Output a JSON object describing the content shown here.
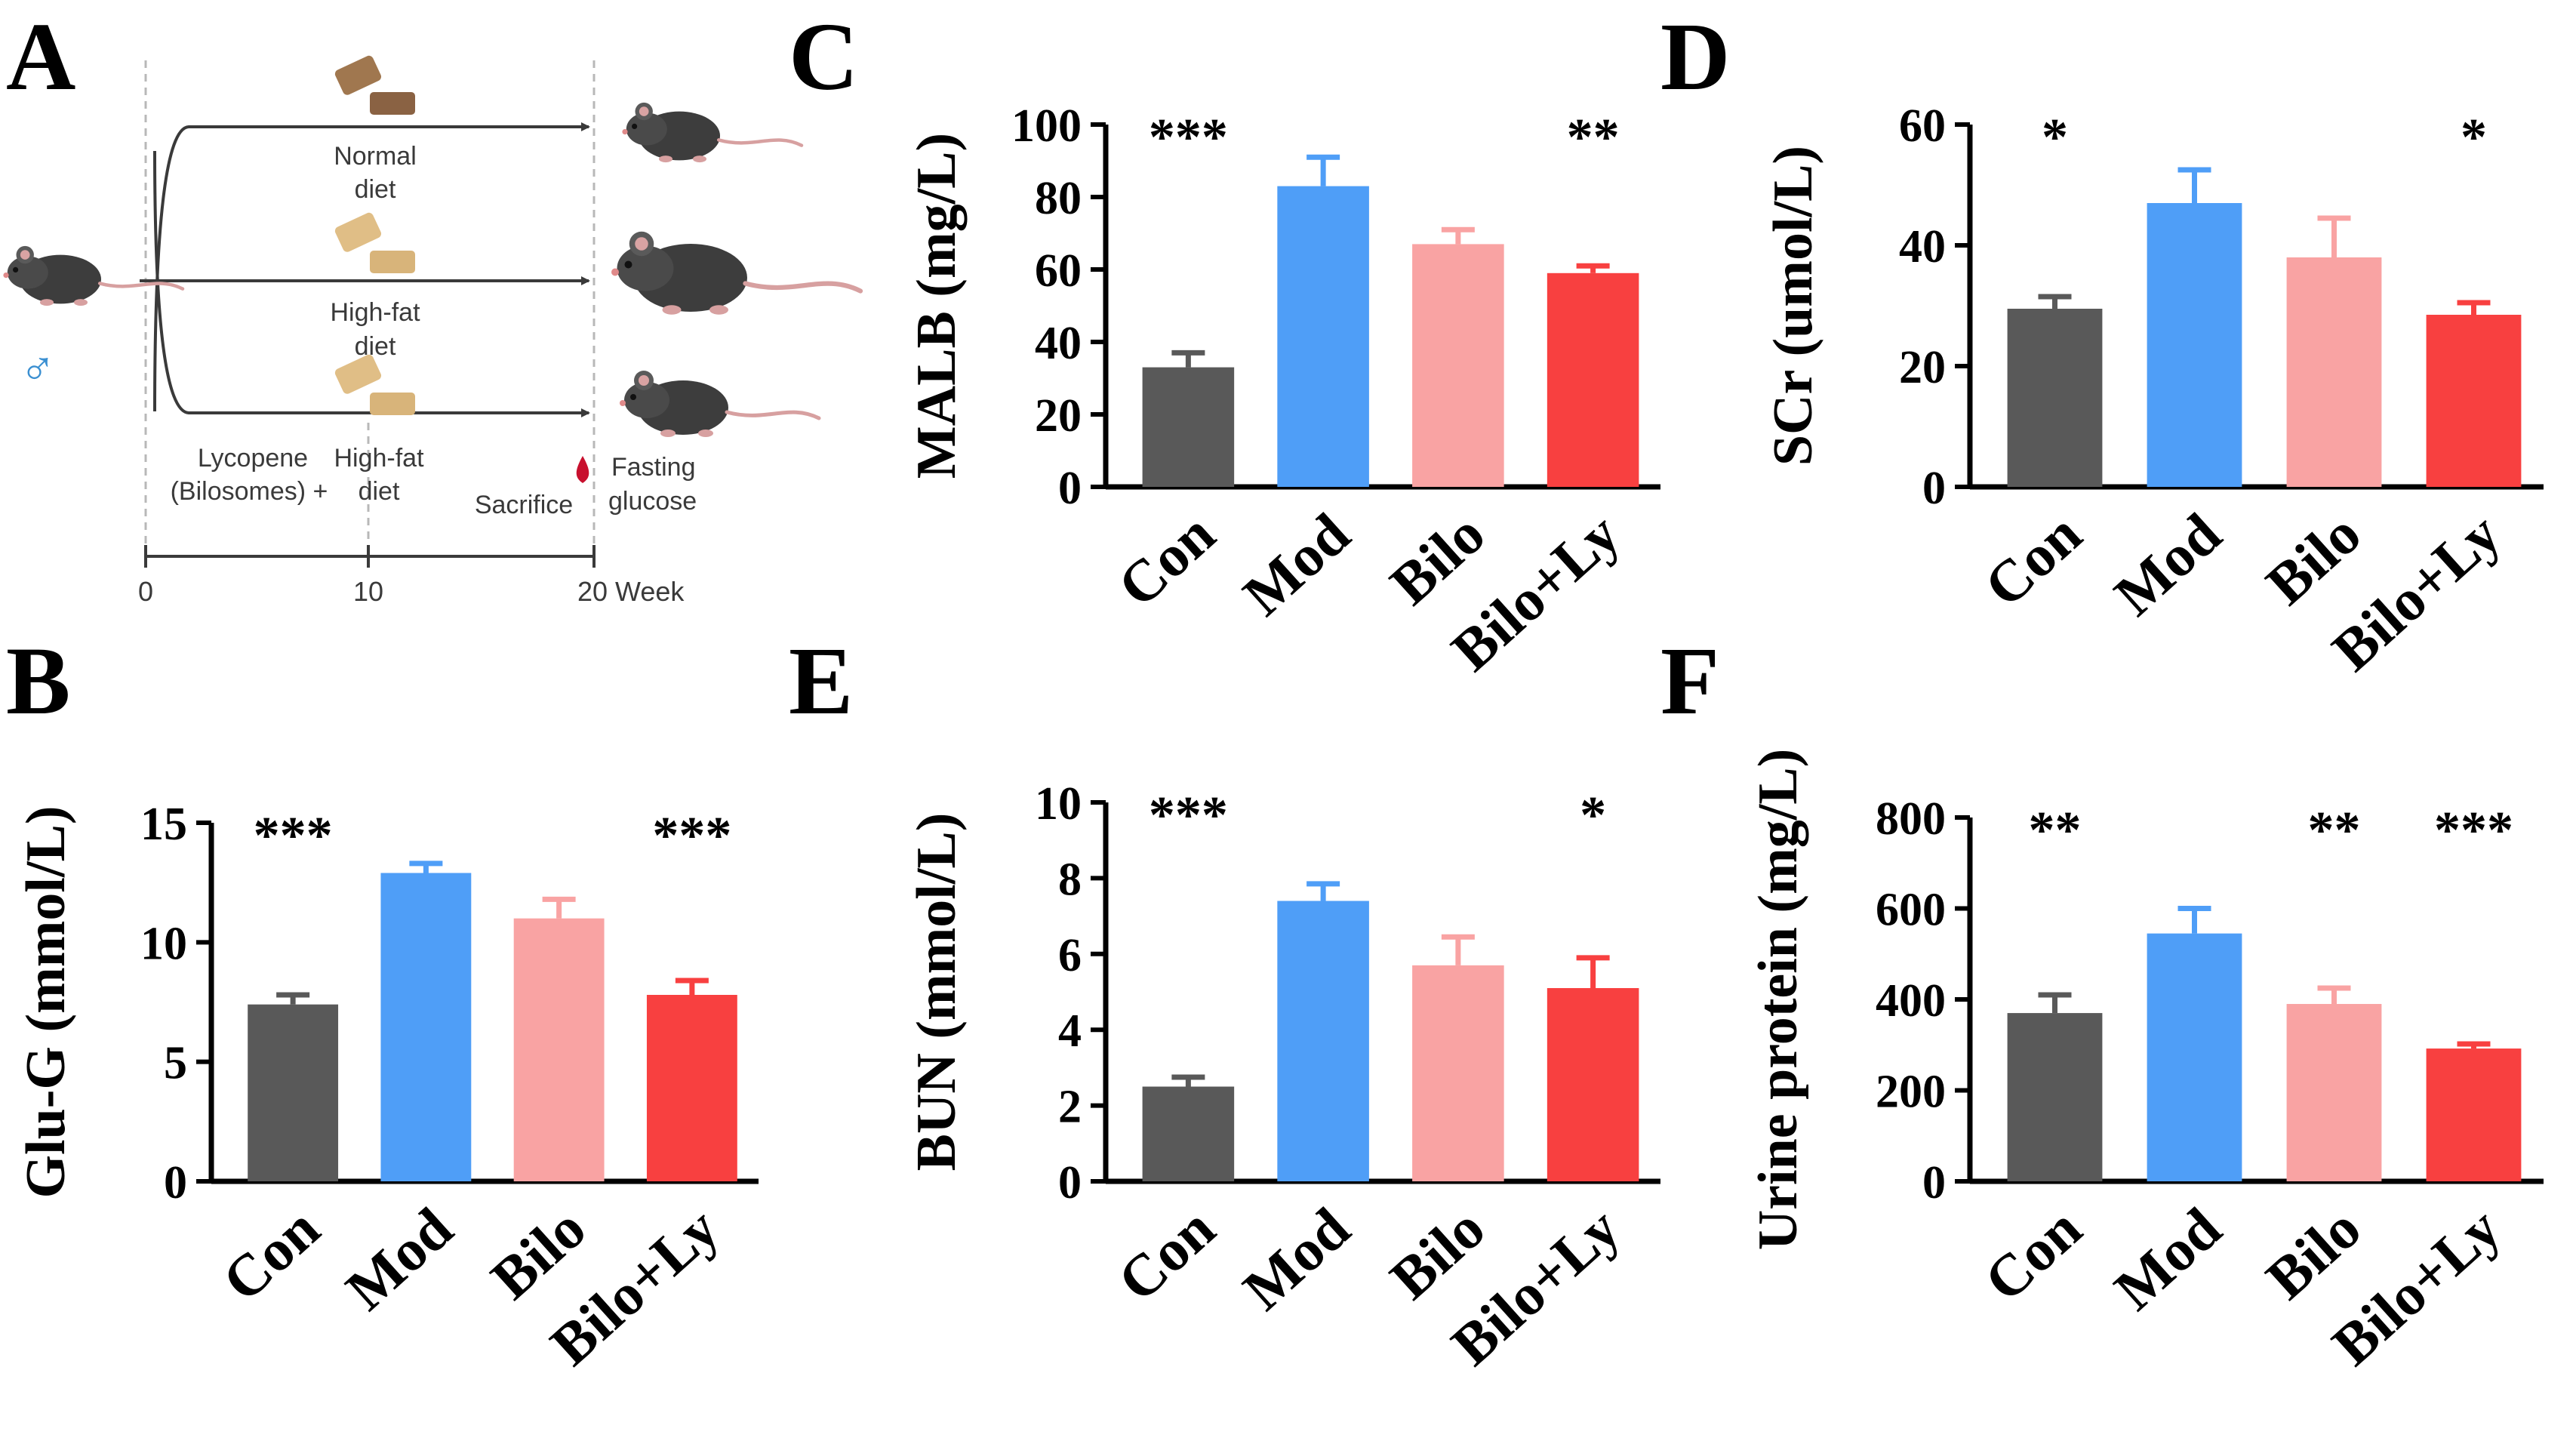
{
  "figure": {
    "panel_letters": [
      "A",
      "B",
      "C",
      "D",
      "E",
      "F"
    ],
    "colors": {
      "con": "#595959",
      "mod": "#4f9ef7",
      "bilo": "#f9a3a3",
      "bilo_ly": "#f84040",
      "ink": "#000000",
      "schematic_text": "#3a3a3a",
      "dash": "#b8b8b8",
      "male_symbol": "#3a8fd1",
      "blood": "#c8102e"
    }
  },
  "schematic": {
    "male_symbol": "♂",
    "arms": [
      {
        "label_line1": "Normal",
        "label_line2": "diet"
      },
      {
        "label_line1": "High-fat",
        "label_line2": "diet"
      }
    ],
    "treatment_line1": "Lycopene",
    "treatment_line2": "(Bilosomes) +",
    "treatment_diet_line1": "High-fat",
    "treatment_diet_line2": "diet",
    "sacrifice": "Sacrifice",
    "fasting_line1": "Fasting",
    "fasting_line2": "glucose",
    "timeline_ticks": [
      "0",
      "10",
      "20 Week"
    ]
  },
  "chart_data": [
    {
      "panel": "B",
      "type": "bar",
      "categories": [
        "Con",
        "Mod",
        "Bilo",
        "Bilo+Ly"
      ],
      "values": [
        7.4,
        12.9,
        11.0,
        7.8
      ],
      "errors": [
        0.4,
        0.4,
        0.8,
        0.6
      ],
      "significance": [
        "***",
        "",
        "",
        "***"
      ],
      "ylabel": "Glu-G (mmol/L)",
      "ylim": [
        0,
        15
      ],
      "yticks": [
        0,
        5,
        10,
        15
      ]
    },
    {
      "panel": "C",
      "type": "bar",
      "categories": [
        "Con",
        "Mod",
        "Bilo",
        "Bilo+Ly"
      ],
      "values": [
        33,
        83,
        67,
        59
      ],
      "errors": [
        4,
        8,
        4,
        2
      ],
      "significance": [
        "***",
        "",
        "",
        "**"
      ],
      "ylabel": "MALB (mg/L)",
      "ylim": [
        0,
        100
      ],
      "yticks": [
        0,
        20,
        40,
        60,
        80,
        100
      ]
    },
    {
      "panel": "D",
      "type": "bar",
      "categories": [
        "Con",
        "Mod",
        "Bilo",
        "Bilo+Ly"
      ],
      "values": [
        29.5,
        47,
        38,
        28.5
      ],
      "errors": [
        2,
        5.5,
        6.5,
        2
      ],
      "significance": [
        "*",
        "",
        "",
        "*"
      ],
      "ylabel": "SCr (umol/L)",
      "ylim": [
        0,
        60
      ],
      "yticks": [
        0,
        20,
        40,
        60
      ]
    },
    {
      "panel": "E",
      "type": "bar",
      "categories": [
        "Con",
        "Mod",
        "Bilo",
        "Bilo+Ly"
      ],
      "values": [
        2.5,
        7.4,
        5.7,
        5.1
      ],
      "errors": [
        0.25,
        0.45,
        0.75,
        0.8
      ],
      "significance": [
        "***",
        "",
        "",
        "*"
      ],
      "ylabel": "BUN (mmol/L)",
      "ylim": [
        0,
        10
      ],
      "yticks": [
        0,
        2,
        4,
        6,
        8,
        10
      ]
    },
    {
      "panel": "F",
      "type": "bar",
      "categories": [
        "Con",
        "Mod",
        "Bilo",
        "Bilo+Ly"
      ],
      "values": [
        370,
        545,
        390,
        292
      ],
      "errors": [
        40,
        55,
        35,
        10
      ],
      "significance": [
        "**",
        "",
        "**",
        "***"
      ],
      "ylabel": "Urine protein (mg/L)",
      "ylim": [
        0,
        800
      ],
      "yticks": [
        0,
        200,
        400,
        600,
        800
      ]
    }
  ]
}
